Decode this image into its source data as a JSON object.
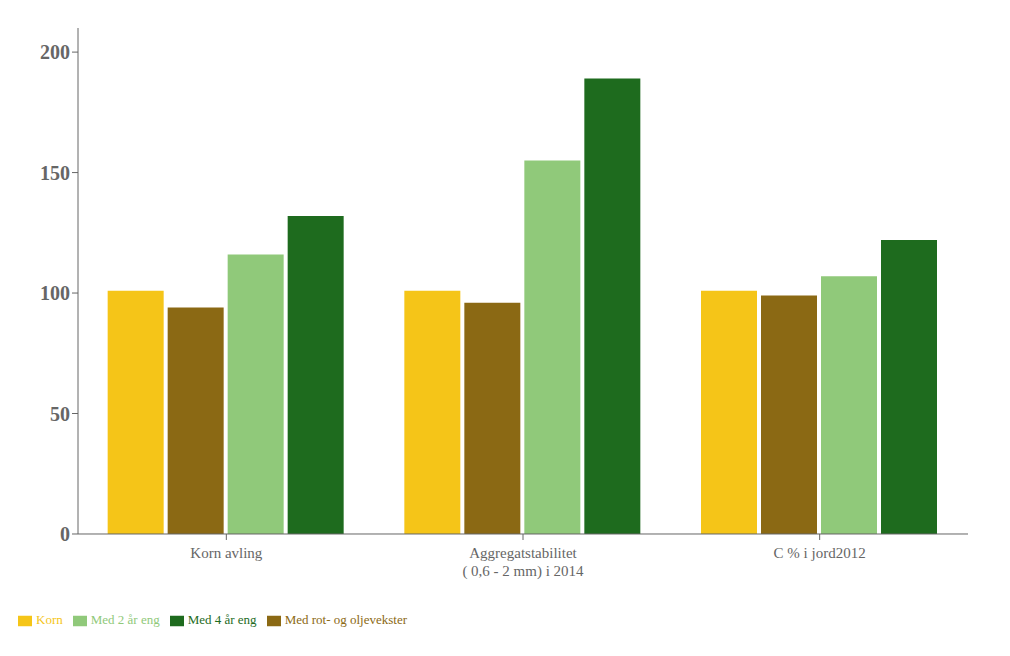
{
  "chart_data": {
    "type": "bar",
    "categories": [
      "Korn avling",
      "Aggregatstabilitet\n( 0,6 - 2 mm) i 2014",
      "C %  i jord2012"
    ],
    "series": [
      {
        "name": "Korn",
        "color": "#F5C518",
        "values": [
          101,
          101,
          101
        ]
      },
      {
        "name": "Med rot- og oljevekster",
        "color": "#8B6914",
        "values": [
          94,
          96,
          99
        ]
      },
      {
        "name": "Med 2 år eng",
        "color": "#90C97A",
        "values": [
          116,
          155,
          107
        ]
      },
      {
        "name": "Med 4 år eng",
        "color": "#1E6B1E",
        "values": [
          132,
          189,
          122
        ]
      }
    ],
    "ylim": [
      0,
      210
    ],
    "yticks": [
      0,
      50,
      100,
      150,
      200
    ],
    "grid": false,
    "legend": "lower left"
  }
}
